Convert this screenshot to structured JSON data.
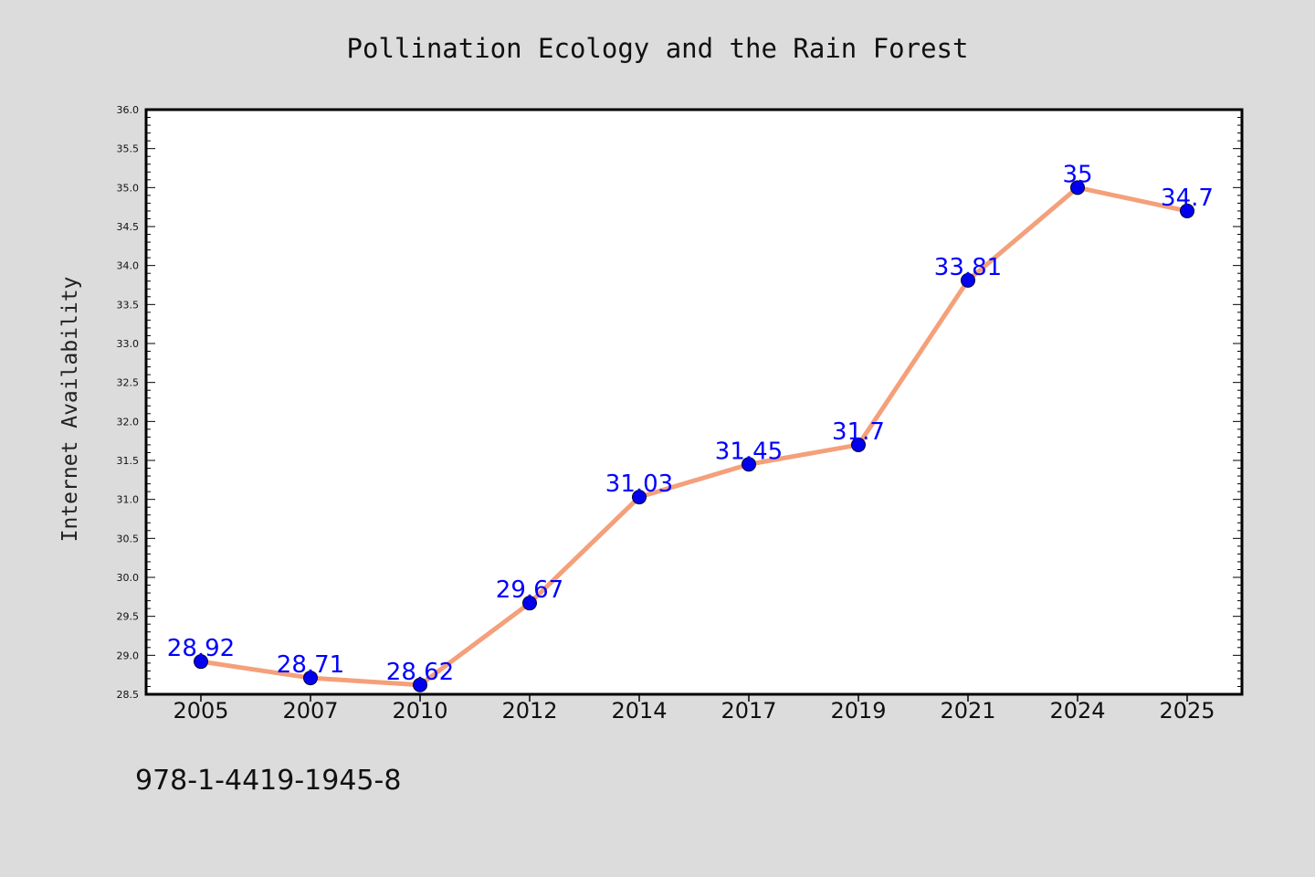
{
  "chart_data": {
    "type": "line",
    "title": "Pollination Ecology and the Rain Forest",
    "ylabel": "Internet Availability",
    "xlabel": "",
    "categories": [
      "2005",
      "2007",
      "2010",
      "2012",
      "2014",
      "2017",
      "2019",
      "2021",
      "2024",
      "2025"
    ],
    "series": [
      {
        "values": [
          28.92,
          28.71,
          28.62,
          29.67,
          31.03,
          31.45,
          31.7,
          33.81,
          35,
          34.7
        ],
        "line_color": "#f4a07a",
        "marker_color": "#0000ee"
      }
    ],
    "data_labels": [
      "28.92",
      "28.71",
      "28.62",
      "29.67",
      "31.03",
      "31.45",
      "31.7",
      "33.81",
      "35",
      "34.7"
    ],
    "ylim": [
      28.5,
      36.0
    ],
    "yticks": [
      "28.5",
      "29.0",
      "29.5",
      "30.0",
      "30.5",
      "31.0",
      "31.5",
      "32.0",
      "32.5",
      "33.0",
      "33.5",
      "34.0",
      "34.5",
      "35.0",
      "35.5",
      "36.0"
    ],
    "label_color": "#0000ff",
    "grid": false,
    "legend": "none"
  },
  "footer": {
    "isbn": "978-1-4419-1945-8"
  }
}
